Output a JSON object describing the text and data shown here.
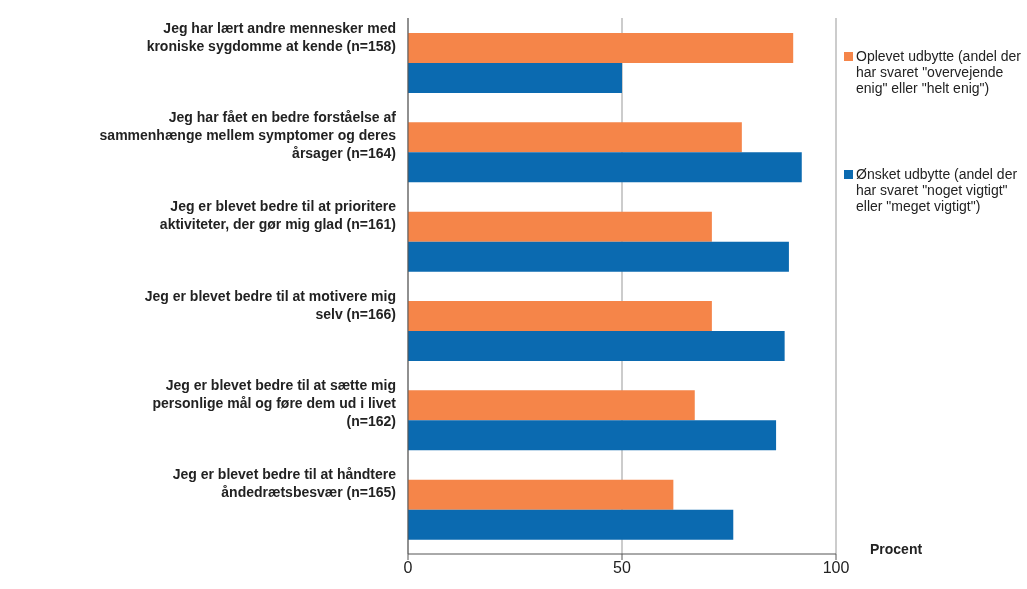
{
  "chart_data": {
    "type": "bar",
    "orientation": "horizontal",
    "categories": [
      "Jeg har lært andre mennesker med kroniske sygdomme at kende (n=158)",
      "Jeg har fået en bedre forståelse af sammenhænge mellem symptomer  og deres årsager (n=164)",
      "Jeg er blevet bedre til at prioritere aktiviteter, der gør mig glad (n=161)",
      "Jeg er blevet bedre til at motivere mig selv (n=166)",
      "Jeg er blevet bedre til at sætte mig personlige mål og føre dem ud i livet (n=162)",
      "Jeg er blevet bedre til at håndtere åndedrætsbesvær (n=165)"
    ],
    "series": [
      {
        "name": "Oplevet udbytte (andel der har svaret \"overvejende enig\" eller \"helt enig\")",
        "color": "#f58549",
        "values": [
          90,
          78,
          71,
          71,
          67,
          62
        ]
      },
      {
        "name": "Ønsket udbytte (andel der har svaret \"noget vigtigt\" eller \"meget vigtigt\")",
        "color": "#0b6ab0",
        "values": [
          50,
          92,
          89,
          88,
          86,
          76
        ]
      }
    ],
    "xlim": [
      0,
      100
    ],
    "xticks": [
      0,
      50,
      100
    ],
    "annotations": [
      "Procent"
    ],
    "grid": "x",
    "legend": "right"
  }
}
